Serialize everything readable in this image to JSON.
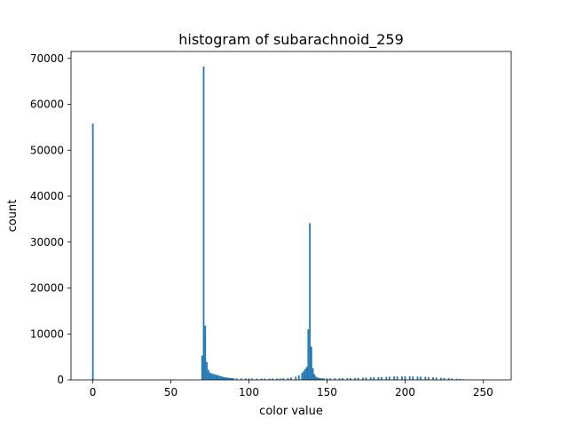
{
  "chart_data": {
    "type": "bar",
    "title": "histogram of subarachnoid_259",
    "xlabel": "color value",
    "ylabel": "count",
    "xlim": [
      -14,
      268
    ],
    "ylim": [
      0,
      71500
    ],
    "xticks": [
      0,
      50,
      100,
      150,
      200,
      250
    ],
    "yticks": [
      0,
      10000,
      20000,
      30000,
      40000,
      50000,
      60000,
      70000
    ],
    "grid": false,
    "bar_color": "#1f77b4",
    "bins": {
      "x": [
        0,
        70,
        71,
        72,
        73,
        74,
        75,
        76,
        77,
        78,
        79,
        80,
        81,
        82,
        83,
        84,
        85,
        86,
        87,
        88,
        89,
        90,
        92,
        95,
        98,
        100,
        102,
        105,
        108,
        110,
        113,
        115,
        118,
        120,
        122,
        125,
        127,
        130,
        132,
        134,
        135,
        136,
        137,
        138,
        139,
        140,
        141,
        142,
        143,
        144,
        145,
        146,
        147,
        148,
        150,
        152,
        155,
        158,
        160,
        163,
        165,
        168,
        170,
        173,
        175,
        178,
        180,
        183,
        185,
        188,
        190,
        193,
        195,
        198,
        200,
        203,
        205,
        208,
        210,
        213,
        215,
        218,
        220,
        223,
        225,
        228,
        230,
        233,
        235,
        237
      ],
      "values": [
        55800,
        5300,
        68200,
        11800,
        3900,
        2200,
        1600,
        1400,
        1300,
        1200,
        1100,
        1000,
        900,
        800,
        700,
        600,
        550,
        500,
        450,
        400,
        380,
        350,
        330,
        320,
        300,
        300,
        290,
        280,
        280,
        280,
        280,
        290,
        300,
        320,
        350,
        400,
        500,
        700,
        1000,
        1500,
        1900,
        2400,
        2800,
        11000,
        34100,
        7200,
        2500,
        1200,
        700,
        500,
        400,
        350,
        330,
        320,
        320,
        330,
        340,
        350,
        360,
        380,
        400,
        430,
        450,
        480,
        500,
        530,
        560,
        600,
        620,
        660,
        700,
        720,
        740,
        760,
        770,
        760,
        750,
        720,
        700,
        660,
        620,
        560,
        500,
        450,
        400,
        350,
        300,
        250,
        200,
        150
      ]
    }
  }
}
